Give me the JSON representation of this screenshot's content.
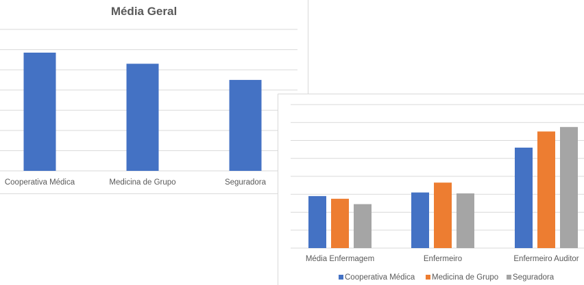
{
  "chart_data": [
    {
      "type": "bar",
      "title": "Média Geral",
      "categories": [
        "Cooperativa Médica",
        "Medicina de Grupo",
        "Seguradora"
      ],
      "values": [
        5.85,
        5.3,
        4.5
      ],
      "ylim": [
        0,
        7
      ],
      "grid": true,
      "legend": "none",
      "colors": {
        "bar": "#4472c4",
        "grid": "#d9d9d9",
        "text": "#595959"
      }
    },
    {
      "type": "bar",
      "title": "",
      "categories": [
        "Média Enfermagem",
        "Enfermeiro",
        "Enfermeiro Auditor"
      ],
      "series": [
        {
          "name": "Cooperativa Médica",
          "values": [
            2.9,
            3.1,
            5.6
          ],
          "color": "#4472c4"
        },
        {
          "name": "Medicina de Grupo",
          "values": [
            2.75,
            3.65,
            6.5
          ],
          "color": "#ed7d31"
        },
        {
          "name": "Seguradora",
          "values": [
            2.45,
            3.05,
            6.75
          ],
          "color": "#a5a5a5"
        }
      ],
      "ylim": [
        0,
        8
      ],
      "grid": true,
      "legend": "bottom"
    }
  ]
}
